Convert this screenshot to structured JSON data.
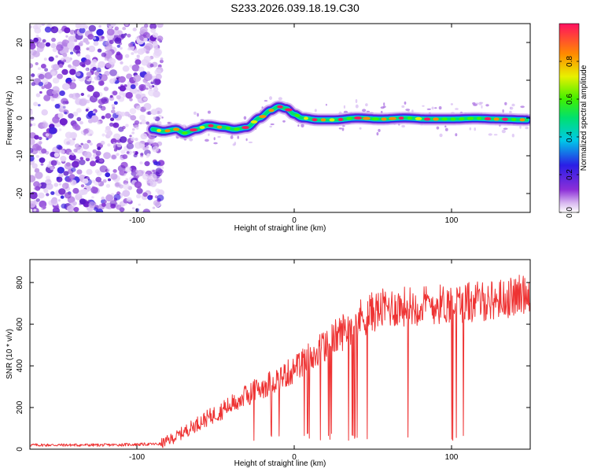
{
  "figure_title": "S233.2026.039.18.19.C30",
  "chart_data": [
    {
      "type": "heatmap",
      "name": "spectrogram",
      "xlabel": "Height of straight line (km)",
      "ylabel": "Frequency (Hz)",
      "xlim": [
        -168,
        150
      ],
      "ylim": [
        -25,
        25
      ],
      "xticks": [
        -100,
        0,
        100
      ],
      "yticks": [
        -20,
        -10,
        0,
        10,
        20
      ],
      "noise_region_x": [
        -168,
        -87
      ],
      "track_x": [
        -90,
        -83,
        -75,
        -70,
        -62,
        -55,
        -45,
        -38,
        -30,
        -22,
        -15,
        -10,
        -5,
        0,
        5,
        15,
        25,
        40,
        55,
        70,
        85,
        100,
        115,
        130,
        148
      ],
      "track_frequency": [
        -3,
        -3.5,
        -3,
        -4,
        -3,
        -2,
        -2.5,
        -3,
        -2.5,
        0,
        2,
        3,
        2.5,
        1,
        0,
        -0.5,
        -0.5,
        0,
        -0.3,
        0,
        -0.3,
        -0.3,
        -0.1,
        -0.3,
        -0.5
      ],
      "colorbar": {
        "label": "Normalized spectral amplitude",
        "ticks": [
          "0.0",
          "0.2",
          "0.4",
          "0.6",
          "0.8"
        ],
        "range": [
          0,
          1
        ]
      }
    },
    {
      "type": "line",
      "name": "snr",
      "xlabel": "Height of straight line (km)",
      "ylabel": "SNR (10 * v/v)",
      "xlim": [
        -168,
        150
      ],
      "ylim": [
        0,
        910
      ],
      "xticks": [
        -100,
        0,
        100
      ],
      "yticks": [
        0,
        200,
        400,
        600,
        800
      ],
      "color": "#ee3333",
      "trend_x": [
        -168,
        -120,
        -85,
        -75,
        -60,
        -45,
        -30,
        -15,
        0,
        10,
        20,
        30,
        40,
        50,
        60,
        80,
        100,
        120,
        140,
        150
      ],
      "trend_y": [
        20,
        20,
        25,
        60,
        130,
        190,
        260,
        320,
        380,
        440,
        500,
        560,
        620,
        660,
        680,
        690,
        700,
        710,
        730,
        760
      ],
      "dropout_floor": 40
    }
  ],
  "tick_text": {
    "top_x": [
      "-100",
      "0",
      "100"
    ],
    "top_y": [
      "20",
      "10",
      "0",
      "-10",
      "-20"
    ],
    "bottom_x": [
      "-100",
      "0",
      "100"
    ],
    "bottom_y": [
      "800",
      "600",
      "400",
      "200",
      "0"
    ]
  }
}
